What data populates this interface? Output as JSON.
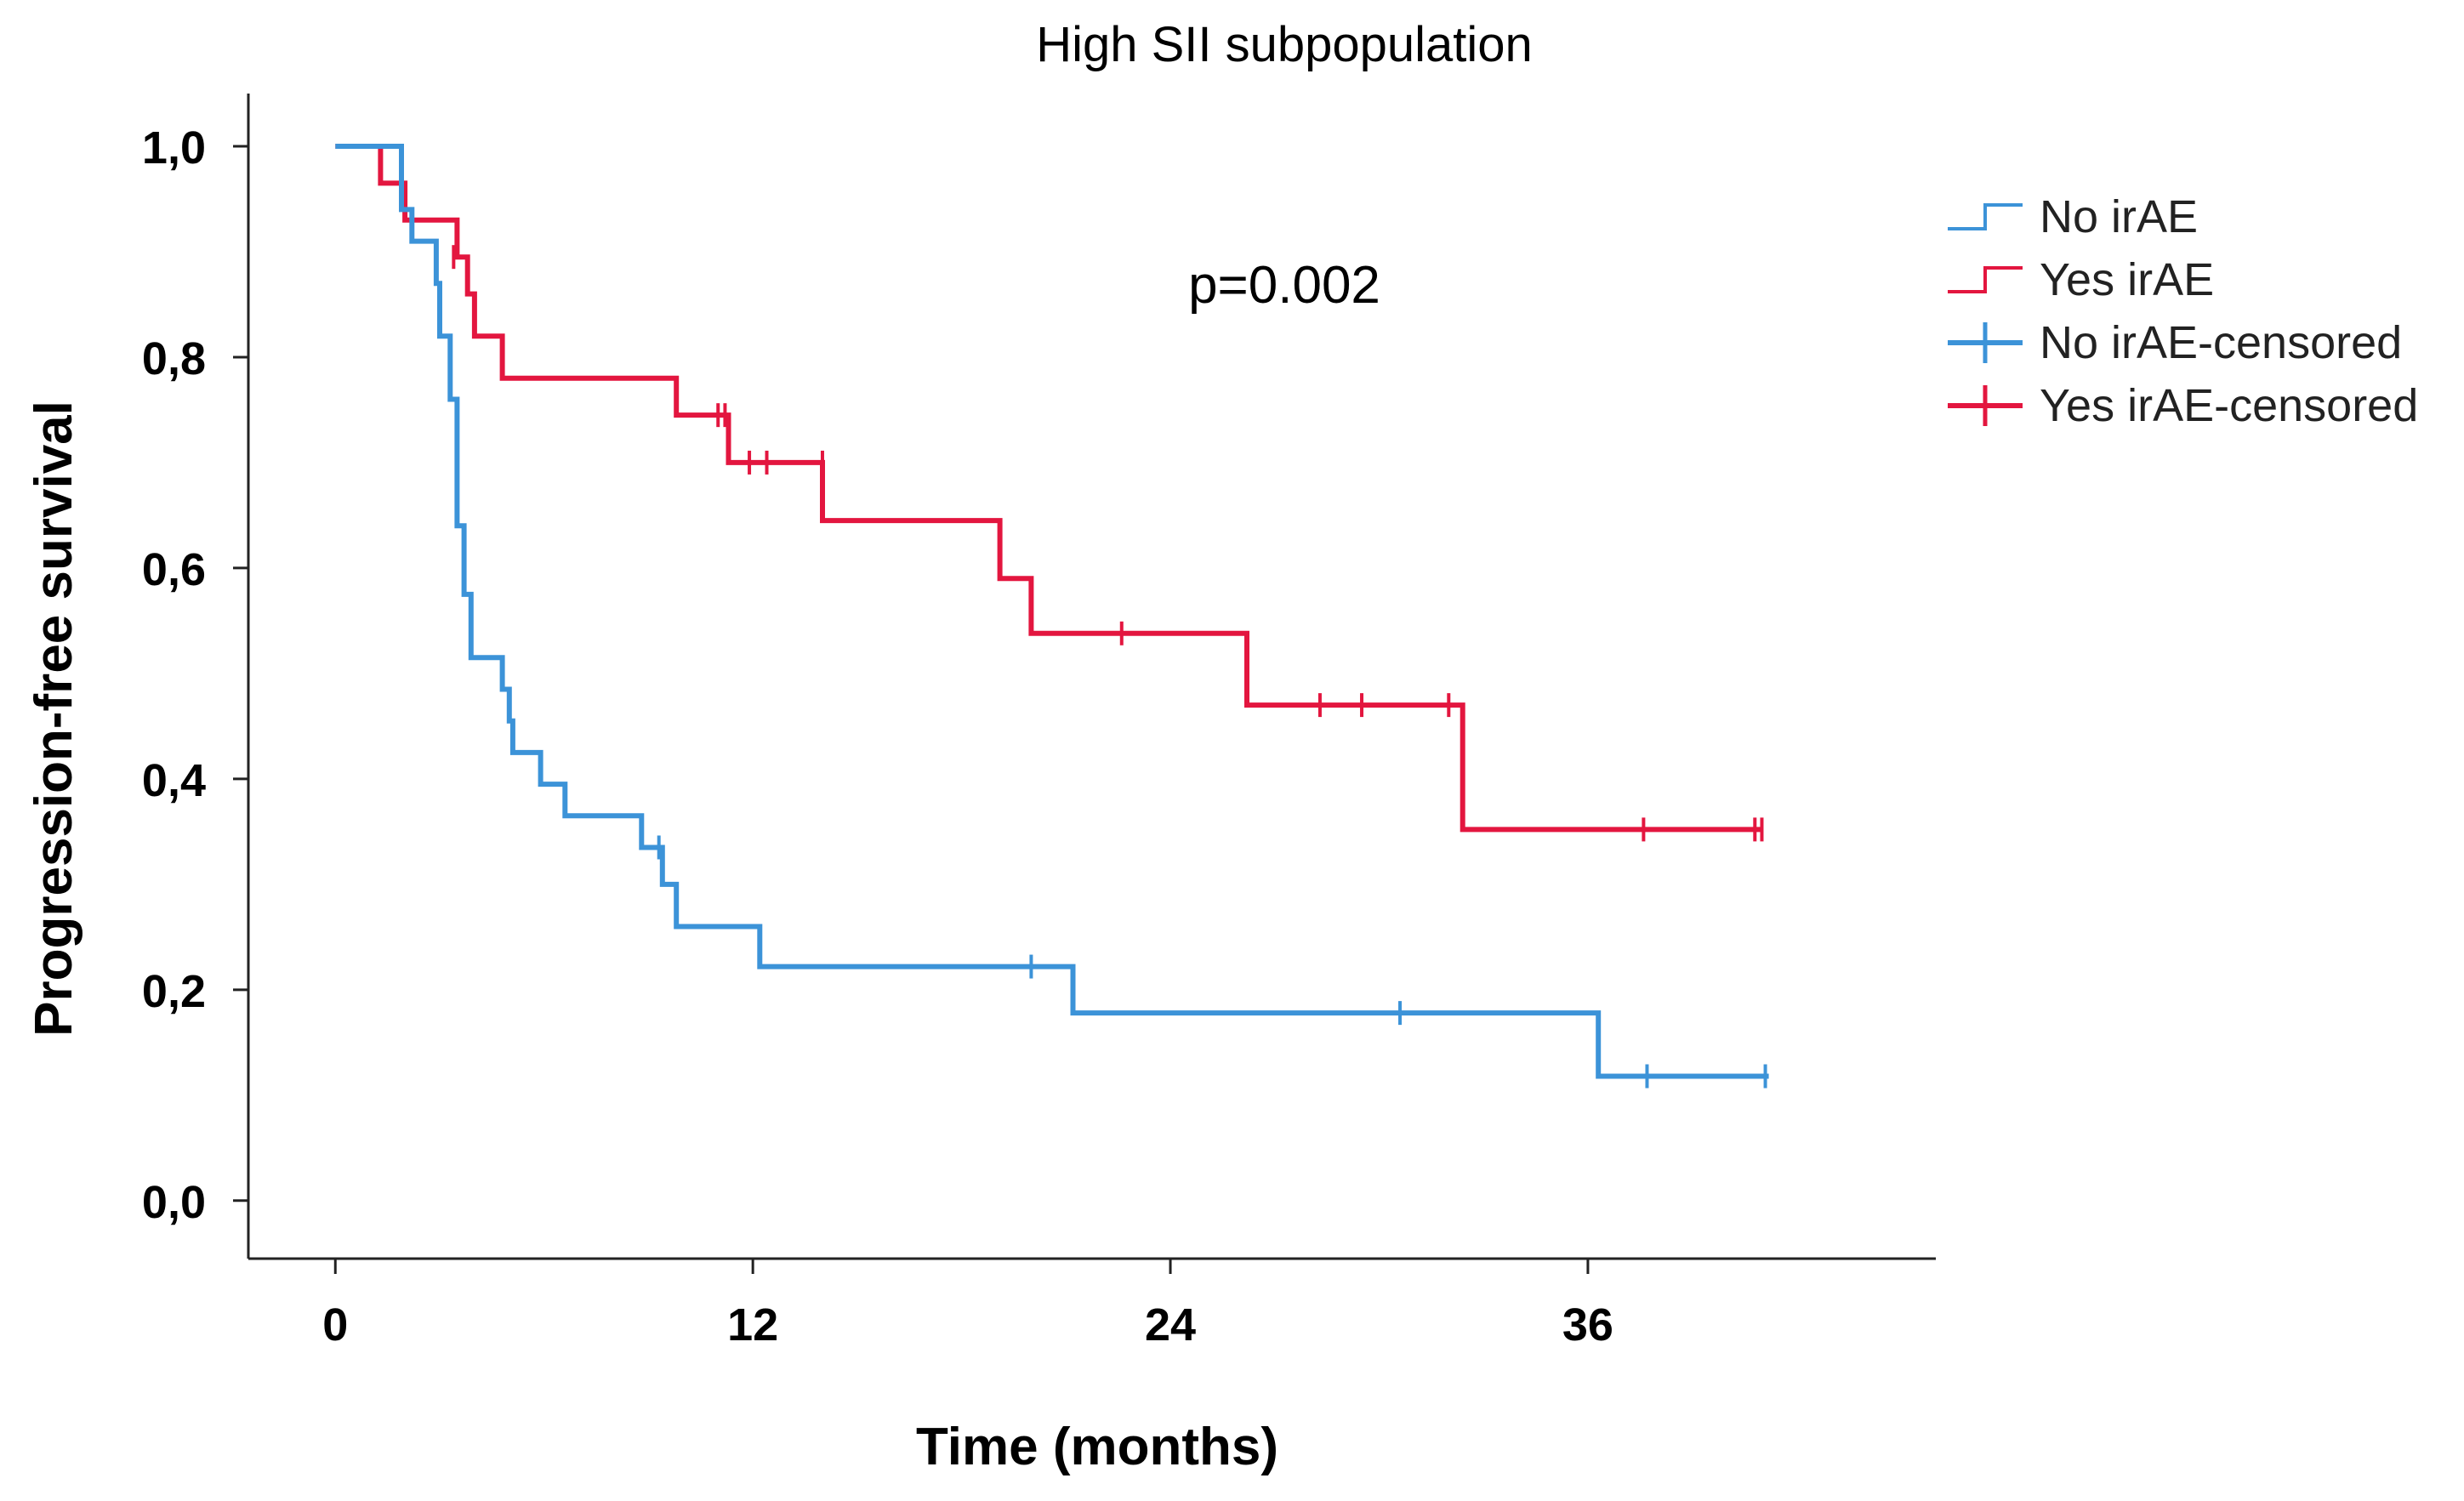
{
  "chart_data": {
    "type": "line",
    "subtype": "kaplan-meier",
    "title": "High SII subpopulation",
    "xlabel": "Time (months)",
    "ylabel": "Progression-free survival",
    "xlim": [
      -2.5,
      46
    ],
    "ylim": [
      -0.055,
      1.05
    ],
    "xticks": [
      0,
      12,
      24,
      36
    ],
    "xtick_labels": [
      "0",
      "12",
      "24",
      "36"
    ],
    "yticks": [
      0.0,
      0.2,
      0.4,
      0.6,
      0.8,
      1.0
    ],
    "ytick_labels": [
      "0,0",
      "0,2",
      "0,4",
      "0,6",
      "0,8",
      "1,0"
    ],
    "annotation": "p=0.002",
    "legend_position": "top-right",
    "colors": {
      "no_irae": "#3c93d8",
      "yes_irae": "#e3163f",
      "axis": "#222222",
      "text": "#000000"
    },
    "legend": [
      {
        "label": "No irAE",
        "series": "no_irae",
        "symbol": "step"
      },
      {
        "label": "Yes irAE",
        "series": "yes_irae",
        "symbol": "step"
      },
      {
        "label": "No irAE-censored",
        "series": "no_irae",
        "symbol": "censor"
      },
      {
        "label": "Yes irAE-censored",
        "series": "yes_irae",
        "symbol": "censor"
      }
    ],
    "series": [
      {
        "name": "Yes irAE",
        "key": "yes_irae",
        "steps": [
          [
            0,
            1.0
          ],
          [
            1.3,
            0.965
          ],
          [
            2.0,
            0.93
          ],
          [
            3.5,
            0.895
          ],
          [
            3.8,
            0.86
          ],
          [
            4.0,
            0.82
          ],
          [
            4.8,
            0.78
          ],
          [
            9.8,
            0.745
          ],
          [
            11.3,
            0.7
          ],
          [
            14.0,
            0.645
          ],
          [
            19.1,
            0.59
          ],
          [
            20.0,
            0.538
          ],
          [
            26.2,
            0.47
          ],
          [
            32.4,
            0.352
          ],
          [
            41.0,
            0.352
          ]
        ],
        "censored": [
          [
            3.4,
            0.895
          ],
          [
            11.0,
            0.745
          ],
          [
            11.2,
            0.745
          ],
          [
            11.9,
            0.7
          ],
          [
            12.4,
            0.7
          ],
          [
            14.0,
            0.7
          ],
          [
            22.6,
            0.538
          ],
          [
            28.3,
            0.47
          ],
          [
            29.5,
            0.47
          ],
          [
            32.0,
            0.47
          ],
          [
            37.6,
            0.352
          ],
          [
            40.8,
            0.352
          ],
          [
            41.0,
            0.352
          ]
        ]
      },
      {
        "name": "No irAE",
        "key": "no_irae",
        "steps": [
          [
            0,
            1.0
          ],
          [
            1.9,
            0.94
          ],
          [
            2.2,
            0.91
          ],
          [
            2.9,
            0.87
          ],
          [
            3.0,
            0.82
          ],
          [
            3.3,
            0.76
          ],
          [
            3.5,
            0.64
          ],
          [
            3.7,
            0.575
          ],
          [
            3.9,
            0.515
          ],
          [
            4.8,
            0.485
          ],
          [
            5.0,
            0.455
          ],
          [
            5.1,
            0.425
          ],
          [
            5.9,
            0.395
          ],
          [
            6.6,
            0.365
          ],
          [
            8.8,
            0.335
          ],
          [
            9.4,
            0.3
          ],
          [
            9.8,
            0.26
          ],
          [
            12.2,
            0.222
          ],
          [
            21.2,
            0.178
          ],
          [
            36.3,
            0.118
          ],
          [
            41.2,
            0.118
          ]
        ],
        "censored": [
          [
            9.3,
            0.335
          ],
          [
            20.0,
            0.222
          ],
          [
            30.6,
            0.178
          ],
          [
            37.7,
            0.118
          ],
          [
            41.1,
            0.118
          ]
        ]
      }
    ]
  }
}
